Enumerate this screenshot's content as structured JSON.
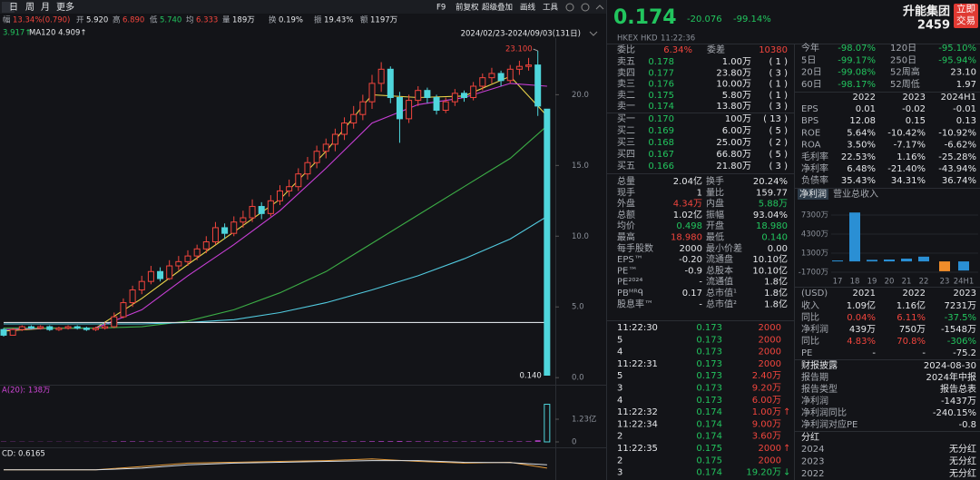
{
  "toolbar": {
    "tabs": [
      "日",
      "周",
      "月",
      "更多"
    ],
    "tools": [
      "F9",
      "前复权",
      "超级叠加",
      "画线",
      "工具"
    ]
  },
  "quote_bar": [
    [
      "幅",
      "13.34%(0.790)"
    ],
    [
      "开",
      "5.920"
    ],
    [
      "高",
      "6.890"
    ],
    [
      "低",
      "5.740"
    ],
    [
      "均",
      "6.333"
    ],
    [
      "量",
      "189万"
    ],
    [
      "换",
      "0.19%"
    ],
    [
      "振",
      "19.43%"
    ],
    [
      "额",
      "1197万"
    ]
  ],
  "kline": {
    "legend": [
      "3.917↑",
      "MA120 4.909↑"
    ],
    "range": "2024/02/23-2024/09/03(131日)",
    "ylim": [
      -0.5,
      24
    ],
    "yticks": [
      {
        "value": 20,
        "label": "20.0"
      },
      {
        "value": 15,
        "label": "15.0"
      },
      {
        "value": 10,
        "label": "10.0"
      },
      {
        "value": 5,
        "label": "5.0"
      },
      {
        "value": 0,
        "label": "0.0"
      }
    ],
    "high_label": "23.100",
    "low_label": "0.140",
    "candles": [
      [
        3.4,
        3.5,
        2.9,
        3.0
      ],
      [
        3.0,
        3.5,
        3.0,
        3.4
      ],
      [
        3.4,
        3.7,
        3.3,
        3.6
      ],
      [
        3.6,
        3.7,
        3.4,
        3.5
      ],
      [
        3.5,
        3.7,
        3.4,
        3.6
      ],
      [
        3.6,
        3.7,
        3.3,
        3.4
      ],
      [
        3.4,
        3.6,
        3.3,
        3.5
      ],
      [
        3.5,
        3.7,
        3.4,
        3.6
      ],
      [
        3.6,
        3.7,
        3.4,
        3.5
      ],
      [
        3.5,
        3.6,
        3.3,
        3.4
      ],
      [
        3.4,
        3.6,
        3.3,
        3.5
      ],
      [
        3.5,
        3.9,
        3.4,
        3.6
      ],
      [
        3.6,
        4.6,
        3.5,
        4.3
      ],
      [
        4.3,
        5.6,
        4.2,
        5.3
      ],
      [
        5.3,
        6.5,
        5.0,
        6.2
      ],
      [
        6.2,
        7.2,
        5.9,
        6.8
      ],
      [
        6.8,
        7.9,
        6.6,
        7.5
      ],
      [
        7.5,
        7.8,
        6.8,
        7.0
      ],
      [
        7.0,
        8.3,
        6.9,
        7.9
      ],
      [
        7.9,
        8.6,
        7.6,
        8.2
      ],
      [
        8.2,
        9.0,
        7.9,
        8.6
      ],
      [
        8.6,
        9.4,
        8.3,
        9.1
      ],
      [
        9.1,
        10.0,
        8.8,
        9.6
      ],
      [
        9.6,
        11.0,
        9.4,
        10.6
      ],
      [
        10.6,
        10.9,
        9.8,
        10.2
      ],
      [
        10.2,
        11.4,
        10.0,
        11.0
      ],
      [
        11.0,
        11.8,
        10.6,
        11.3
      ],
      [
        11.3,
        12.6,
        11.0,
        12.1
      ],
      [
        12.1,
        12.4,
        11.2,
        11.6
      ],
      [
        11.6,
        12.9,
        11.4,
        12.5
      ],
      [
        12.5,
        13.6,
        12.2,
        13.2
      ],
      [
        13.2,
        14.0,
        12.8,
        13.5
      ],
      [
        13.5,
        14.8,
        13.2,
        14.4
      ],
      [
        14.4,
        15.6,
        14.0,
        15.2
      ],
      [
        15.2,
        16.4,
        14.8,
        16.0
      ],
      [
        16.0,
        16.9,
        15.5,
        16.5
      ],
      [
        16.5,
        17.6,
        16.0,
        17.2
      ],
      [
        17.2,
        18.4,
        16.8,
        18.0
      ],
      [
        18.0,
        19.2,
        17.6,
        18.6
      ],
      [
        18.6,
        20.0,
        18.2,
        19.5
      ],
      [
        19.5,
        21.4,
        19.0,
        20.8
      ],
      [
        20.8,
        22.3,
        20.2,
        21.8
      ],
      [
        21.8,
        22.0,
        19.4,
        19.8
      ],
      [
        19.8,
        20.2,
        16.6,
        18.3
      ],
      [
        18.3,
        20.0,
        18.0,
        19.6
      ],
      [
        19.6,
        20.6,
        19.2,
        20.3
      ],
      [
        20.3,
        20.5,
        19.4,
        19.8
      ],
      [
        19.8,
        20.0,
        18.6,
        18.9
      ],
      [
        18.9,
        19.8,
        18.7,
        19.5
      ],
      [
        19.5,
        20.4,
        19.2,
        20.1
      ],
      [
        20.1,
        20.3,
        19.5,
        19.8
      ],
      [
        19.8,
        20.9,
        19.6,
        20.6
      ],
      [
        20.6,
        21.5,
        20.3,
        21.2
      ],
      [
        21.2,
        21.9,
        20.8,
        21.5
      ],
      [
        21.5,
        21.7,
        20.6,
        21.0
      ],
      [
        21.0,
        22.1,
        20.8,
        21.8
      ],
      [
        21.8,
        22.4,
        21.4,
        22.0
      ],
      [
        22.0,
        22.6,
        21.7,
        22.1
      ],
      [
        22.1,
        23.1,
        18.5,
        19.2
      ],
      [
        18.98,
        18.98,
        0.14,
        0.174
      ]
    ],
    "ma_x": [
      0,
      5,
      10,
      15,
      20,
      25,
      30,
      35,
      40,
      45,
      50,
      55,
      59
    ],
    "ma": [
      {
        "color": "#e8d24a",
        "values": [
          3.3,
          3.5,
          3.5,
          5.6,
          8.0,
          10.3,
          12.6,
          16.0,
          20.0,
          19.8,
          19.9,
          21.3,
          18.5
        ]
      },
      {
        "color": "#c83fd6",
        "values": [
          3.4,
          3.5,
          3.5,
          4.8,
          7.2,
          9.4,
          11.8,
          14.8,
          18.0,
          19.3,
          19.8,
          20.8,
          20.6
        ]
      },
      {
        "color": "#3cae46",
        "values": [
          3.5,
          3.5,
          3.5,
          3.6,
          4.0,
          4.8,
          6.0,
          7.5,
          9.5,
          11.5,
          13.5,
          15.5,
          17.8
        ]
      },
      {
        "color": "#52cbe0",
        "values": [
          3.8,
          3.8,
          3.8,
          3.8,
          3.9,
          4.1,
          4.6,
          5.3,
          6.2,
          7.2,
          8.4,
          9.8,
          11.4
        ]
      },
      {
        "color": "#d9dde2",
        "values": [
          3.9,
          3.9,
          3.9,
          3.9,
          3.9,
          3.9,
          3.9,
          3.9,
          3.9,
          3.9,
          3.9,
          3.9,
          3.9
        ]
      }
    ],
    "volume": {
      "label": "A(20): 138万",
      "ylim": [
        0,
        24600
      ],
      "yticks": [
        {
          "value": 12300,
          "label": "1.23亿"
        },
        0
      ],
      "values": [
        180,
        150,
        140,
        130,
        120,
        130,
        120,
        110,
        120,
        130,
        120,
        140,
        260,
        320,
        300,
        280,
        260,
        220,
        240,
        230,
        250,
        240,
        260,
        300,
        240,
        260,
        250,
        280,
        230,
        260,
        280,
        250,
        270,
        290,
        300,
        280,
        300,
        320,
        300,
        330,
        380,
        420,
        400,
        500,
        350,
        320,
        300,
        280,
        270,
        280,
        260,
        280,
        300,
        290,
        270,
        300,
        310,
        320,
        900,
        20400
      ]
    },
    "macd": {
      "label": "CD: 0.6165",
      "ylim": [
        -1,
        1.6
      ],
      "series": [
        {
          "color": "#e39a3a",
          "values": [
            0.0,
            0.0,
            0.0,
            0.4,
            0.8,
            0.9,
            1.0,
            1.1,
            1.3,
            1.0,
            0.8,
            0.9,
            0.2
          ]
        },
        {
          "color": "#d9dde2",
          "values": [
            0.0,
            0.0,
            0.0,
            0.2,
            0.6,
            0.8,
            0.9,
            1.0,
            1.1,
            1.1,
            0.9,
            0.85,
            0.6
          ]
        }
      ]
    }
  },
  "header": {
    "price": "0.174",
    "change": "-20.076",
    "pct": "-99.14%",
    "name": "升能集团",
    "code": "2459",
    "button": "立即交易",
    "market": "HKEX",
    "currency": "HKD",
    "time": "11:22:36"
  },
  "order_book": {
    "ratio": [
      "委比",
      "6.34%",
      "委差",
      "10380"
    ],
    "asks": [
      [
        "卖五",
        "0.178",
        "1.00万",
        "(   1 )"
      ],
      [
        "卖四",
        "0.177",
        "23.80万",
        "(   3 )"
      ],
      [
        "卖三",
        "0.176",
        "10.00万",
        "(   1 )"
      ],
      [
        "卖二",
        "0.175",
        "5.80万",
        "(   1 )"
      ],
      [
        "卖一",
        "0.174",
        "13.80万",
        "(   3 )"
      ]
    ],
    "bids": [
      [
        "买一",
        "0.170",
        "100万",
        "(  13 )"
      ],
      [
        "买二",
        "0.169",
        "6.00万",
        "(   5 )"
      ],
      [
        "买三",
        "0.168",
        "25.00万",
        "(   2 )"
      ],
      [
        "买四",
        "0.167",
        "66.80万",
        "(   5 )"
      ],
      [
        "买五",
        "0.166",
        "21.80万",
        "(   3 )"
      ]
    ]
  },
  "stats": [
    [
      "总量",
      "2.04亿",
      "换手",
      "20.24%"
    ],
    [
      "现手",
      "1",
      "量比",
      "159.77"
    ],
    [
      "外盘",
      "4.34万",
      "内盘",
      "5.88万"
    ],
    [
      "总额",
      "1.02亿",
      "振幅",
      "93.04%"
    ],
    [
      "均价",
      "0.498",
      "开盘",
      "18.980"
    ],
    [
      "最高",
      "18.980",
      "最低",
      "0.140"
    ],
    [
      "每手股数",
      "2000",
      "最小价差",
      "0.00"
    ],
    [
      "EPS™",
      "-0.20",
      "流通盘",
      "10.10亿"
    ],
    [
      "PE™",
      "-0.9",
      "总股本",
      "10.10亿"
    ],
    [
      "PE²⁰²⁴",
      "-",
      "流通值",
      "1.8亿"
    ],
    [
      "PBᴹᴿᑫ",
      "0.17",
      "总市值¹",
      "1.8亿"
    ],
    [
      "股息率™",
      "-",
      "总市值²",
      "1.8亿"
    ]
  ],
  "trades": [
    [
      "11:22:30",
      "0.173",
      "2000"
    ],
    [
      "5",
      "0.173",
      "2000"
    ],
    [
      "4",
      "0.173",
      "2000"
    ],
    [
      "11:22:31",
      "0.173",
      "2000"
    ],
    [
      "5",
      "0.173",
      "2.40万"
    ],
    [
      "3",
      "0.173",
      "9.20万"
    ],
    [
      "4",
      "0.173",
      "6.00万"
    ],
    [
      "11:22:32",
      "0.174",
      "1.00万",
      "↑"
    ],
    [
      "11:22:34",
      "0.174",
      "9.00万"
    ],
    [
      "2",
      "0.174",
      "3.60万"
    ],
    [
      "11:22:35",
      "0.175",
      "2000",
      "↑"
    ],
    [
      "2",
      "0.175",
      "2000"
    ],
    [
      "3",
      "0.174",
      "19.20万",
      "↓"
    ]
  ],
  "performance": [
    [
      "今年",
      "-98.07%",
      "120日",
      "-95.10%"
    ],
    [
      "5日",
      "-99.17%",
      "250日",
      "-95.94%"
    ],
    [
      "20日",
      "-99.08%",
      "52周高",
      "23.10"
    ],
    [
      "60日",
      "-98.17%",
      "52周低",
      "1.97"
    ]
  ],
  "financials": {
    "header": [
      "2022",
      "2023",
      "2024H1"
    ],
    "rows": [
      [
        "EPS",
        "0.01",
        "-0.02",
        "-0.01"
      ],
      [
        "BPS",
        "12.08",
        "0.15",
        "0.13"
      ],
      [
        "ROE",
        "5.64%",
        "-10.42%",
        "-10.92%"
      ],
      [
        "ROA",
        "3.50%",
        "-7.17%",
        "-6.62%"
      ],
      [
        "毛利率",
        "22.53%",
        "1.16%",
        "-25.28%"
      ],
      [
        "净利率",
        "6.48%",
        "-21.40%",
        "-43.94%"
      ],
      [
        "负债率",
        "35.43%",
        "34.31%",
        "36.74%"
      ]
    ]
  },
  "profit_chart": {
    "tabs": [
      "净利润",
      "营业总收入"
    ],
    "categories": [
      "17",
      "18",
      "19",
      "20",
      "21",
      "22",
      "23",
      "24H1"
    ],
    "values": [
      150,
      7700,
      250,
      300,
      439,
      750,
      -1548,
      -1437
    ],
    "colors": [
      "#2a8fd4",
      "#2a8fd4",
      "#2a8fd4",
      "#2a8fd4",
      "#2a8fd4",
      "#2a8fd4",
      "#f08c2a",
      "#2a8fd4"
    ],
    "ylim": [
      -1700,
      7300
    ],
    "yticks": [
      {
        "value": 7300,
        "label": "7300万"
      },
      {
        "value": 4300,
        "label": "4300万"
      },
      {
        "value": 1300,
        "label": "1300万"
      },
      {
        "value": -1700,
        "label": "-1700万"
      }
    ]
  },
  "annual": {
    "header": [
      "(USD)",
      "2021",
      "2022",
      "2023"
    ],
    "rows": [
      [
        "收入",
        "1.09亿",
        "1.16亿",
        "7231万"
      ],
      [
        "同比",
        "0.04%",
        "6.11%",
        "-37.5%"
      ],
      [
        "净利润",
        "439万",
        "750万",
        "-1548万"
      ],
      [
        "同比",
        "4.83%",
        "70.8%",
        "-306%"
      ],
      [
        "PE",
        "-",
        "-",
        "-75.2"
      ]
    ]
  },
  "report": {
    "title": "财报披露",
    "date": "2024-08-30",
    "rows": [
      [
        "报告期",
        "2024年中报"
      ],
      [
        "报告类型",
        "报告总表"
      ],
      [
        "净利润",
        "-1437万"
      ],
      [
        "净利润同比",
        "-240.15%"
      ],
      [
        "净利润对应PE",
        "-0.8"
      ]
    ]
  },
  "dividends": {
    "title": "分红",
    "rows": [
      [
        "2024",
        "无分红"
      ],
      [
        "2023",
        "无分红"
      ],
      [
        "2022",
        "无分红"
      ]
    ]
  }
}
